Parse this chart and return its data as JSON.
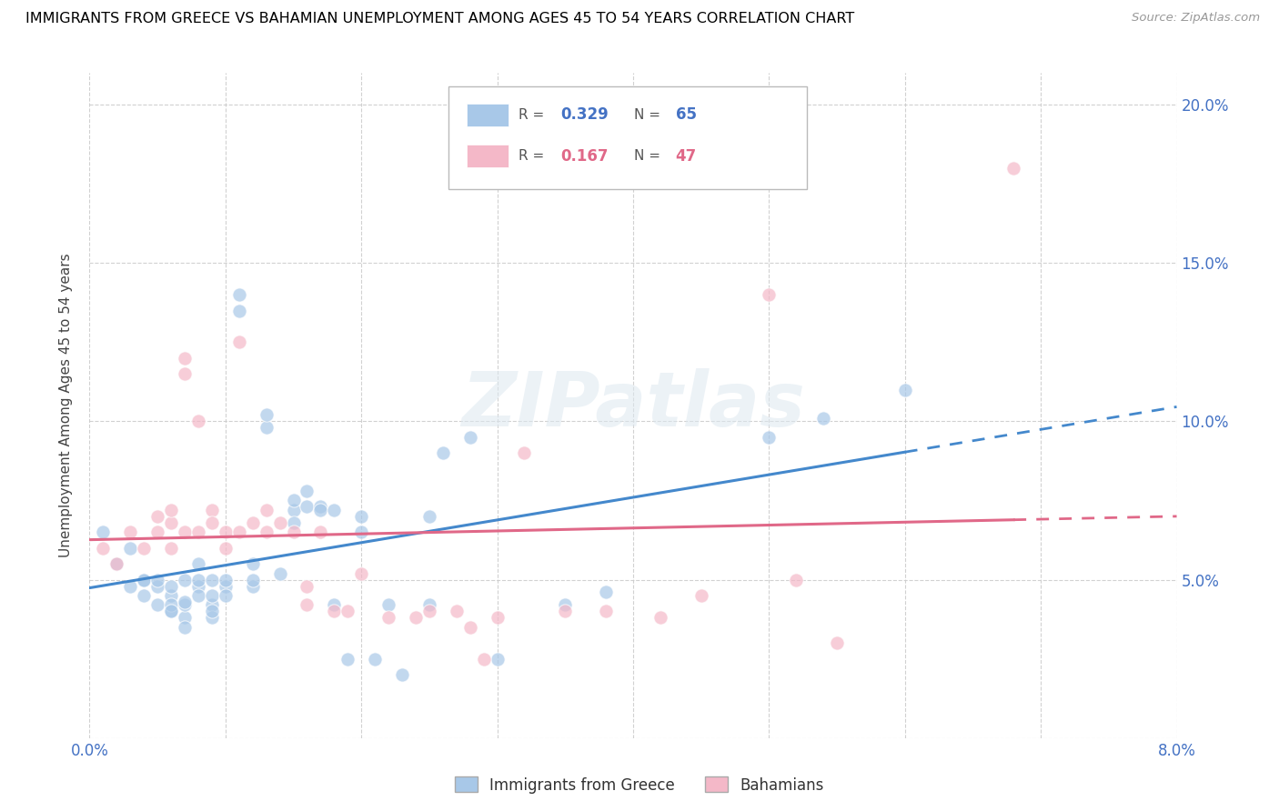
{
  "title": "IMMIGRANTS FROM GREECE VS BAHAMIAN UNEMPLOYMENT AMONG AGES 45 TO 54 YEARS CORRELATION CHART",
  "source": "Source: ZipAtlas.com",
  "ylabel": "Unemployment Among Ages 45 to 54 years",
  "xlim": [
    0.0,
    0.08
  ],
  "ylim": [
    0.0,
    0.21
  ],
  "xtick_vals": [
    0.0,
    0.01,
    0.02,
    0.03,
    0.04,
    0.05,
    0.06,
    0.07,
    0.08
  ],
  "xticklabels": [
    "0.0%",
    "",
    "",
    "",
    "",
    "",
    "",
    "",
    "8.0%"
  ],
  "ytick_vals": [
    0.0,
    0.05,
    0.1,
    0.15,
    0.2
  ],
  "yticklabels_right": [
    "",
    "5.0%",
    "10.0%",
    "15.0%",
    "20.0%"
  ],
  "legend1_label": "Immigrants from Greece",
  "legend2_label": "Bahamians",
  "R1": 0.329,
  "N1": 65,
  "R2": 0.167,
  "N2": 47,
  "color_blue": "#a8c8e8",
  "color_pink": "#f4b8c8",
  "trendline1_color": "#4488cc",
  "trendline2_color": "#e06888",
  "watermark": "ZIPatlas",
  "greece_x": [
    0.001,
    0.002,
    0.003,
    0.003,
    0.004,
    0.004,
    0.004,
    0.005,
    0.005,
    0.005,
    0.006,
    0.006,
    0.006,
    0.006,
    0.006,
    0.007,
    0.007,
    0.007,
    0.007,
    0.007,
    0.008,
    0.008,
    0.008,
    0.008,
    0.009,
    0.009,
    0.009,
    0.009,
    0.009,
    0.01,
    0.01,
    0.01,
    0.011,
    0.011,
    0.012,
    0.012,
    0.012,
    0.013,
    0.013,
    0.014,
    0.015,
    0.015,
    0.015,
    0.016,
    0.016,
    0.017,
    0.017,
    0.018,
    0.018,
    0.019,
    0.02,
    0.02,
    0.021,
    0.022,
    0.023,
    0.025,
    0.025,
    0.026,
    0.028,
    0.03,
    0.035,
    0.038,
    0.05,
    0.054,
    0.06
  ],
  "greece_y": [
    0.065,
    0.055,
    0.06,
    0.048,
    0.05,
    0.045,
    0.05,
    0.048,
    0.042,
    0.05,
    0.045,
    0.04,
    0.042,
    0.048,
    0.04,
    0.05,
    0.038,
    0.035,
    0.042,
    0.043,
    0.055,
    0.048,
    0.05,
    0.045,
    0.042,
    0.05,
    0.038,
    0.045,
    0.04,
    0.048,
    0.05,
    0.045,
    0.14,
    0.135,
    0.055,
    0.048,
    0.05,
    0.098,
    0.102,
    0.052,
    0.072,
    0.068,
    0.075,
    0.078,
    0.073,
    0.073,
    0.072,
    0.072,
    0.042,
    0.025,
    0.07,
    0.065,
    0.025,
    0.042,
    0.02,
    0.07,
    0.042,
    0.09,
    0.095,
    0.025,
    0.042,
    0.046,
    0.095,
    0.101,
    0.11
  ],
  "bahamas_x": [
    0.001,
    0.002,
    0.003,
    0.004,
    0.005,
    0.005,
    0.006,
    0.006,
    0.006,
    0.007,
    0.007,
    0.007,
    0.008,
    0.008,
    0.009,
    0.009,
    0.01,
    0.01,
    0.011,
    0.011,
    0.012,
    0.013,
    0.013,
    0.014,
    0.015,
    0.016,
    0.016,
    0.017,
    0.018,
    0.019,
    0.02,
    0.022,
    0.024,
    0.025,
    0.027,
    0.028,
    0.029,
    0.03,
    0.032,
    0.035,
    0.038,
    0.042,
    0.045,
    0.05,
    0.052,
    0.055,
    0.068
  ],
  "bahamas_y": [
    0.06,
    0.055,
    0.065,
    0.06,
    0.07,
    0.065,
    0.068,
    0.06,
    0.072,
    0.065,
    0.12,
    0.115,
    0.065,
    0.1,
    0.072,
    0.068,
    0.065,
    0.06,
    0.065,
    0.125,
    0.068,
    0.065,
    0.072,
    0.068,
    0.065,
    0.048,
    0.042,
    0.065,
    0.04,
    0.04,
    0.052,
    0.038,
    0.038,
    0.04,
    0.04,
    0.035,
    0.025,
    0.038,
    0.09,
    0.04,
    0.04,
    0.038,
    0.045,
    0.14,
    0.05,
    0.03,
    0.18
  ]
}
